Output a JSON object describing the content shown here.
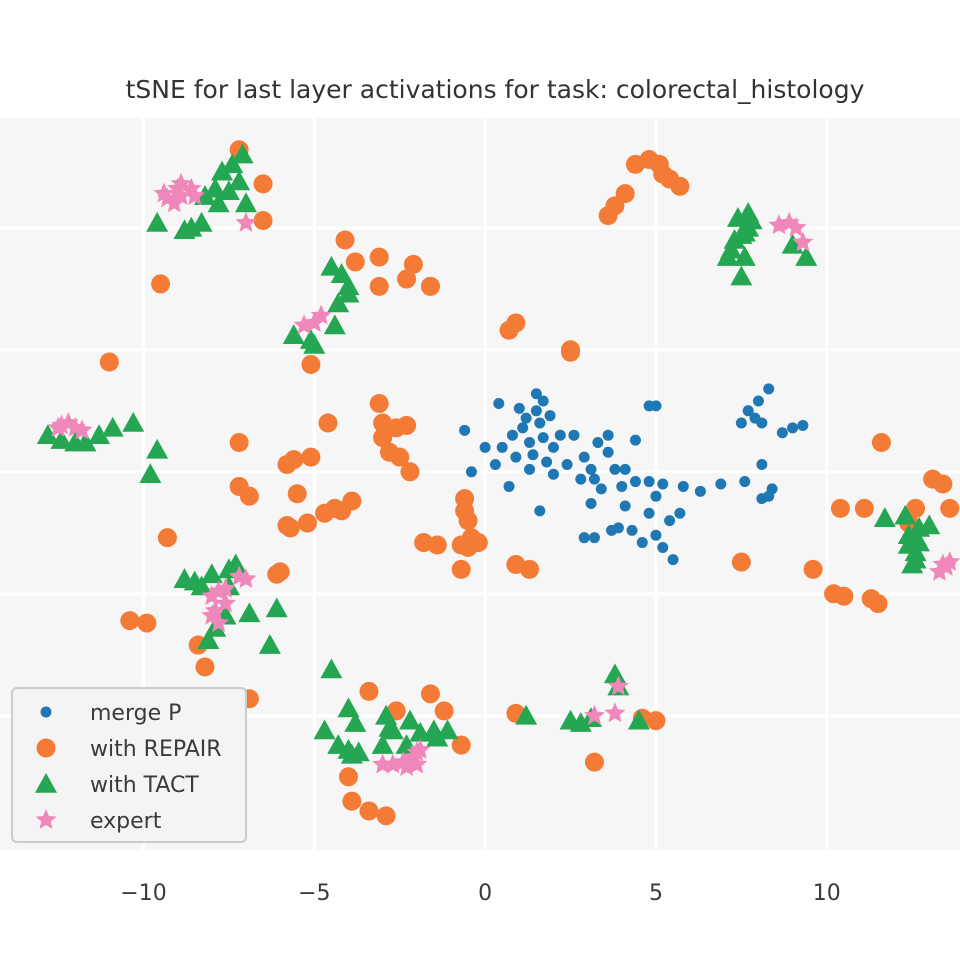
{
  "chart_data": {
    "type": "scatter",
    "title": "tSNE for last layer activations for task: colorectal_histology",
    "xlabel": "",
    "ylabel": "",
    "xlim": [
      -14.2,
      13.9
    ],
    "ylim": [
      -15.5,
      14.5
    ],
    "xticks": [
      -10,
      -5,
      0,
      5,
      10
    ],
    "xtick_labels": [
      "−10",
      "−5",
      "0",
      "5",
      "10"
    ],
    "yticks": [
      -10,
      -5,
      0,
      5,
      10
    ],
    "grid": true,
    "legend_position": "lower-left",
    "series": [
      {
        "name": "merge P",
        "marker": "circle-small",
        "color": "#1f77b4",
        "points": [
          [
            0.4,
            2.8
          ],
          [
            1.0,
            2.6
          ],
          [
            1.2,
            2.2
          ],
          [
            1.5,
            2.5
          ],
          [
            1.5,
            3.2
          ],
          [
            1.7,
            2.9
          ],
          [
            1.6,
            2.0
          ],
          [
            1.9,
            2.3
          ],
          [
            1.1,
            1.8
          ],
          [
            0.8,
            1.5
          ],
          [
            0.5,
            1.0
          ],
          [
            0.9,
            0.6
          ],
          [
            1.3,
            1.2
          ],
          [
            1.7,
            1.4
          ],
          [
            2.0,
            1.0
          ],
          [
            2.2,
            1.5
          ],
          [
            1.8,
            0.4
          ],
          [
            1.4,
            0.7
          ],
          [
            -0.6,
            1.7
          ],
          [
            -0.4,
            0.0
          ],
          [
            0.0,
            1.0
          ],
          [
            0.3,
            0.3
          ],
          [
            0.7,
            -0.6
          ],
          [
            1.3,
            0.1
          ],
          [
            2.0,
            -0.1
          ],
          [
            2.6,
            1.5
          ],
          [
            2.9,
            0.6
          ],
          [
            3.1,
            0.1
          ],
          [
            3.3,
            1.2
          ],
          [
            3.6,
            0.8
          ],
          [
            3.4,
            -0.7
          ],
          [
            3.1,
            -1.3
          ],
          [
            2.8,
            -0.3
          ],
          [
            3.8,
            0.1
          ],
          [
            4.0,
            -0.6
          ],
          [
            4.4,
            -0.4
          ],
          [
            4.8,
            -0.4
          ],
          [
            5.0,
            -1.0
          ],
          [
            5.2,
            -0.5
          ],
          [
            5.8,
            -0.6
          ],
          [
            6.3,
            -0.8
          ],
          [
            5.7,
            -1.7
          ],
          [
            5.4,
            -2.0
          ],
          [
            5.0,
            -2.6
          ],
          [
            5.2,
            -3.1
          ],
          [
            5.5,
            -3.6
          ],
          [
            4.6,
            -2.9
          ],
          [
            4.3,
            -2.4
          ],
          [
            3.9,
            -2.3
          ],
          [
            3.7,
            -2.4
          ],
          [
            3.2,
            -2.7
          ],
          [
            2.9,
            -2.7
          ],
          [
            4.1,
            -1.4
          ],
          [
            4.8,
            -1.7
          ],
          [
            5.0,
            2.7
          ],
          [
            4.8,
            2.7
          ],
          [
            4.4,
            1.3
          ],
          [
            4.1,
            0.1
          ],
          [
            3.6,
            1.5
          ],
          [
            3.2,
            -0.3
          ],
          [
            2.4,
            0.3
          ],
          [
            1.6,
            -1.6
          ],
          [
            6.9,
            -0.5
          ],
          [
            7.6,
            -0.4
          ],
          [
            8.1,
            -1.1
          ],
          [
            8.3,
            -1.0
          ],
          [
            8.4,
            -0.7
          ],
          [
            8.1,
            0.3
          ],
          [
            7.5,
            2.0
          ],
          [
            7.7,
            2.5
          ],
          [
            8.0,
            2.9
          ],
          [
            8.3,
            3.4
          ],
          [
            8.1,
            2.0
          ],
          [
            7.9,
            2.2
          ],
          [
            9.0,
            1.8
          ],
          [
            9.3,
            1.9
          ],
          [
            8.7,
            1.6
          ]
        ]
      },
      {
        "name": "with REPAIR",
        "marker": "circle-large",
        "color": "#f47b35",
        "points": [
          [
            -7.2,
            13.2
          ],
          [
            -6.5,
            11.8
          ],
          [
            -6.5,
            10.3
          ],
          [
            -9.5,
            7.7
          ],
          [
            -11.0,
            4.5
          ],
          [
            -5.1,
            4.4
          ],
          [
            -4.6,
            2.0
          ],
          [
            -3.1,
            2.8
          ],
          [
            -3.0,
            2.0
          ],
          [
            -2.6,
            1.8
          ],
          [
            -2.3,
            1.9
          ],
          [
            -2.8,
            0.8
          ],
          [
            -2.5,
            0.6
          ],
          [
            -2.2,
            0.0
          ],
          [
            -3.0,
            1.4
          ],
          [
            -5.6,
            0.5
          ],
          [
            -5.1,
            0.6
          ],
          [
            -5.8,
            0.3
          ],
          [
            -7.2,
            1.2
          ],
          [
            -7.2,
            -0.6
          ],
          [
            -6.9,
            -1.0
          ],
          [
            -5.5,
            -0.9
          ],
          [
            -4.7,
            -1.7
          ],
          [
            -4.2,
            -1.6
          ],
          [
            -5.2,
            -2.1
          ],
          [
            -5.8,
            -2.2
          ],
          [
            -5.7,
            -2.3
          ],
          [
            -4.4,
            -1.5
          ],
          [
            -3.9,
            -1.2
          ],
          [
            -9.3,
            -2.7
          ],
          [
            -6.0,
            -4.1
          ],
          [
            -6.1,
            -4.2
          ],
          [
            -10.4,
            -6.1
          ],
          [
            -9.9,
            -6.2
          ],
          [
            -8.4,
            -7.1
          ],
          [
            -8.2,
            -8.0
          ],
          [
            -6.9,
            -9.3
          ],
          [
            -3.4,
            -9.0
          ],
          [
            -2.6,
            -9.8
          ],
          [
            -1.6,
            -9.1
          ],
          [
            -1.2,
            -9.8
          ],
          [
            -0.7,
            -11.2
          ],
          [
            -4.0,
            -12.5
          ],
          [
            -3.9,
            -13.5
          ],
          [
            -3.4,
            -13.9
          ],
          [
            -2.9,
            -14.1
          ],
          [
            -1.8,
            -2.9
          ],
          [
            -1.4,
            -3.0
          ],
          [
            -0.7,
            -3.0
          ],
          [
            -0.5,
            -3.1
          ],
          [
            -0.2,
            -2.9
          ],
          [
            -0.4,
            -2.7
          ],
          [
            -0.5,
            -2.0
          ],
          [
            -0.6,
            -1.6
          ],
          [
            -0.6,
            -1.1
          ],
          [
            -0.7,
            -4.0
          ],
          [
            0.9,
            -3.8
          ],
          [
            1.3,
            -4.0
          ],
          [
            0.9,
            -9.9
          ],
          [
            3.2,
            -11.9
          ],
          [
            4.6,
            -10.1
          ],
          [
            5.0,
            -10.2
          ],
          [
            2.5,
            4.9
          ],
          [
            2.5,
            5.0
          ],
          [
            0.9,
            6.1
          ],
          [
            0.7,
            5.8
          ],
          [
            -4.1,
            9.5
          ],
          [
            -3.8,
            8.6
          ],
          [
            -3.1,
            8.8
          ],
          [
            -3.1,
            7.6
          ],
          [
            -2.3,
            7.9
          ],
          [
            -2.1,
            8.5
          ],
          [
            -1.6,
            7.6
          ],
          [
            -1.6,
            7.6
          ],
          [
            3.6,
            10.5
          ],
          [
            3.8,
            10.9
          ],
          [
            4.1,
            11.4
          ],
          [
            4.4,
            12.6
          ],
          [
            4.8,
            12.8
          ],
          [
            5.1,
            12.6
          ],
          [
            5.4,
            12.0
          ],
          [
            5.7,
            11.7
          ],
          [
            5.2,
            12.2
          ],
          [
            7.5,
            -3.7
          ],
          [
            9.6,
            -4.0
          ],
          [
            10.2,
            -5.0
          ],
          [
            10.5,
            -5.1
          ],
          [
            11.3,
            -5.2
          ],
          [
            11.5,
            -5.4
          ],
          [
            10.4,
            -1.5
          ],
          [
            11.1,
            -1.5
          ],
          [
            11.6,
            1.2
          ],
          [
            12.4,
            -2.1
          ],
          [
            12.6,
            -1.5
          ],
          [
            13.1,
            -0.3
          ],
          [
            13.4,
            -0.5
          ],
          [
            13.6,
            -1.5
          ]
        ]
      },
      {
        "name": "with TACT",
        "marker": "triangle",
        "color": "#24a653",
        "points": [
          [
            -7.1,
            13.0
          ],
          [
            -7.4,
            12.6
          ],
          [
            -7.7,
            12.3
          ],
          [
            -7.2,
            11.9
          ],
          [
            -7.5,
            11.5
          ],
          [
            -7.9,
            11.6
          ],
          [
            -8.2,
            11.3
          ],
          [
            -7.8,
            11.0
          ],
          [
            -7.0,
            11.0
          ],
          [
            -9.6,
            10.2
          ],
          [
            -8.3,
            10.2
          ],
          [
            -8.6,
            10.0
          ],
          [
            -8.8,
            9.9
          ],
          [
            -4.5,
            8.4
          ],
          [
            -4.2,
            8.1
          ],
          [
            -4.0,
            7.6
          ],
          [
            -4.0,
            7.3
          ],
          [
            -4.3,
            6.9
          ],
          [
            -4.4,
            6.0
          ],
          [
            -5.1,
            5.4
          ],
          [
            -5.6,
            5.6
          ],
          [
            -5.0,
            5.2
          ],
          [
            -12.8,
            1.5
          ],
          [
            -12.4,
            1.3
          ],
          [
            -12.0,
            1.2
          ],
          [
            -11.7,
            1.2
          ],
          [
            -11.3,
            1.5
          ],
          [
            -10.9,
            1.8
          ],
          [
            -10.3,
            2.0
          ],
          [
            -9.6,
            0.9
          ],
          [
            -9.8,
            -0.1
          ],
          [
            -8.8,
            -4.4
          ],
          [
            -8.5,
            -4.5
          ],
          [
            -8.3,
            -4.7
          ],
          [
            -8.0,
            -4.2
          ],
          [
            -7.5,
            -4.0
          ],
          [
            -7.3,
            -3.8
          ],
          [
            -7.5,
            -4.7
          ],
          [
            -6.9,
            -5.8
          ],
          [
            -6.1,
            -5.6
          ],
          [
            -7.6,
            -5.9
          ],
          [
            -7.9,
            -6.4
          ],
          [
            -8.1,
            -6.9
          ],
          [
            -6.3,
            -7.1
          ],
          [
            -4.5,
            -8.1
          ],
          [
            -4.0,
            -9.7
          ],
          [
            -3.8,
            -10.3
          ],
          [
            -4.7,
            -10.6
          ],
          [
            -4.3,
            -11.2
          ],
          [
            -4.0,
            -11.4
          ],
          [
            -3.7,
            -11.5
          ],
          [
            -3.9,
            -11.6
          ],
          [
            -2.9,
            -10.0
          ],
          [
            -2.8,
            -10.5
          ],
          [
            -2.2,
            -10.2
          ],
          [
            -1.9,
            -10.7
          ],
          [
            -1.5,
            -10.6
          ],
          [
            -1.4,
            -10.9
          ],
          [
            -1.1,
            -10.6
          ],
          [
            -2.3,
            -11.2
          ],
          [
            -3.0,
            -11.2
          ],
          [
            -2.7,
            -10.6
          ],
          [
            1.2,
            -10.0
          ],
          [
            2.5,
            -10.2
          ],
          [
            2.8,
            -10.3
          ],
          [
            3.1,
            -10.1
          ],
          [
            3.8,
            -8.3
          ],
          [
            3.9,
            -8.8
          ],
          [
            4.5,
            -10.2
          ],
          [
            7.3,
            9.5
          ],
          [
            7.6,
            9.8
          ],
          [
            7.7,
            10.0
          ],
          [
            7.8,
            10.3
          ],
          [
            7.7,
            10.6
          ],
          [
            7.4,
            10.4
          ],
          [
            7.5,
            9.7
          ],
          [
            7.2,
            9.1
          ],
          [
            7.6,
            8.8
          ],
          [
            7.1,
            8.8
          ],
          [
            7.5,
            8.0
          ],
          [
            9.0,
            9.3
          ],
          [
            9.4,
            8.8
          ],
          [
            11.7,
            -1.9
          ],
          [
            12.3,
            -1.8
          ],
          [
            12.4,
            -2.6
          ],
          [
            12.7,
            -2.3
          ],
          [
            13.0,
            -2.2
          ],
          [
            12.4,
            -3.0
          ],
          [
            12.7,
            -2.9
          ],
          [
            12.6,
            -3.3
          ],
          [
            12.6,
            -3.6
          ],
          [
            12.5,
            -3.8
          ]
        ]
      },
      {
        "name": "expert",
        "marker": "star",
        "color": "#f087ba",
        "points": [
          [
            -9.4,
            11.4
          ],
          [
            -9.0,
            11.6
          ],
          [
            -8.9,
            11.8
          ],
          [
            -8.6,
            11.6
          ],
          [
            -8.9,
            11.3
          ],
          [
            -9.3,
            11.2
          ],
          [
            -9.1,
            11.0
          ],
          [
            -8.5,
            11.3
          ],
          [
            -7.0,
            10.2
          ],
          [
            -5.0,
            6.1
          ],
          [
            -5.3,
            6.0
          ],
          [
            -4.8,
            6.4
          ],
          [
            -12.4,
            1.9
          ],
          [
            -12.2,
            2.0
          ],
          [
            -12.0,
            1.8
          ],
          [
            -11.8,
            1.7
          ],
          [
            -12.5,
            1.8
          ],
          [
            -7.8,
            -4.9
          ],
          [
            -8.0,
            -5.1
          ],
          [
            -7.6,
            -5.4
          ],
          [
            -7.9,
            -5.7
          ],
          [
            -7.8,
            -6.2
          ],
          [
            -8.0,
            -5.9
          ],
          [
            -7.6,
            -4.8
          ],
          [
            -7.2,
            -4.3
          ],
          [
            -7.0,
            -4.4
          ],
          [
            -3.0,
            -12.0
          ],
          [
            -2.7,
            -12.0
          ],
          [
            -2.4,
            -11.9
          ],
          [
            -2.1,
            -11.7
          ],
          [
            -2.0,
            -12.0
          ],
          [
            -2.3,
            -12.1
          ],
          [
            -2.0,
            -11.5
          ],
          [
            -1.9,
            -11.4
          ],
          [
            3.2,
            -10.0
          ],
          [
            3.8,
            -9.9
          ],
          [
            3.9,
            -8.8
          ],
          [
            8.6,
            10.1
          ],
          [
            8.9,
            10.2
          ],
          [
            9.1,
            10.0
          ],
          [
            9.3,
            9.4
          ],
          [
            13.4,
            -3.8
          ],
          [
            13.5,
            -3.9
          ],
          [
            13.3,
            -4.1
          ],
          [
            13.6,
            -3.7
          ]
        ]
      }
    ]
  }
}
